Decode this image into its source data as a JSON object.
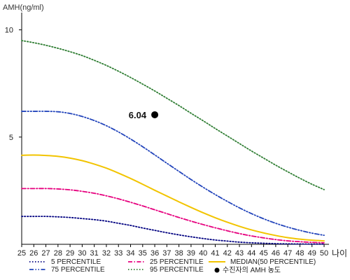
{
  "chart_data": {
    "type": "line",
    "ylabel": "AMH(ng/ml)",
    "xlabel": "나이",
    "xlim": [
      25,
      50
    ],
    "ylim": [
      0,
      11
    ],
    "yticks": [
      5,
      10
    ],
    "xticks": [
      25,
      26,
      27,
      28,
      29,
      30,
      31,
      32,
      33,
      34,
      35,
      36,
      37,
      38,
      39,
      40,
      41,
      42,
      43,
      44,
      45,
      46,
      47,
      48,
      49,
      50
    ],
    "x": [
      25,
      26,
      27,
      28,
      29,
      30,
      31,
      32,
      33,
      34,
      35,
      36,
      37,
      38,
      39,
      40,
      41,
      42,
      43,
      44,
      45,
      46,
      47,
      48,
      49,
      50
    ],
    "series": [
      {
        "name": "5 PERCENTILE",
        "color": "#000080",
        "dash": "dots",
        "values": [
          1.3,
          1.3,
          1.3,
          1.28,
          1.25,
          1.2,
          1.15,
          1.08,
          0.98,
          0.88,
          0.76,
          0.65,
          0.54,
          0.44,
          0.35,
          0.27,
          0.2,
          0.15,
          0.1,
          0.07,
          0.05,
          0.03,
          0.02,
          0.015,
          0.01,
          0.01
        ]
      },
      {
        "name": "25 PERCENTILE",
        "color": "#e6007e",
        "dash": "dashdot",
        "values": [
          2.6,
          2.6,
          2.6,
          2.58,
          2.54,
          2.47,
          2.38,
          2.26,
          2.12,
          1.96,
          1.79,
          1.61,
          1.43,
          1.25,
          1.08,
          0.92,
          0.77,
          0.63,
          0.5,
          0.39,
          0.3,
          0.22,
          0.16,
          0.12,
          0.09,
          0.07
        ]
      },
      {
        "name": "MEDIAN(50 PERCENTILE)",
        "color": "#f2c400",
        "dash": "solid",
        "values": [
          4.15,
          4.16,
          4.14,
          4.1,
          4.02,
          3.9,
          3.74,
          3.55,
          3.32,
          3.07,
          2.8,
          2.52,
          2.25,
          1.98,
          1.72,
          1.47,
          1.24,
          1.03,
          0.84,
          0.67,
          0.53,
          0.41,
          0.31,
          0.24,
          0.19,
          0.16
        ]
      },
      {
        "name": "75 PERCENTILE",
        "color": "#2244bb",
        "dash": "dashdotdot",
        "values": [
          6.2,
          6.2,
          6.2,
          6.18,
          6.1,
          5.96,
          5.77,
          5.53,
          5.24,
          4.91,
          4.55,
          4.17,
          3.78,
          3.4,
          3.02,
          2.66,
          2.32,
          2.0,
          1.7,
          1.43,
          1.19,
          0.98,
          0.8,
          0.65,
          0.52,
          0.42
        ]
      },
      {
        "name": "95 PERCENTILE",
        "color": "#2e7d32",
        "dash": "dots",
        "values": [
          9.5,
          9.4,
          9.28,
          9.14,
          8.98,
          8.8,
          8.58,
          8.34,
          8.07,
          7.78,
          7.47,
          7.15,
          6.81,
          6.47,
          6.11,
          5.76,
          5.4,
          5.05,
          4.7,
          4.35,
          4.02,
          3.69,
          3.38,
          3.08,
          2.8,
          2.55
        ]
      }
    ],
    "point": {
      "name": "수진자의 AMH 농도",
      "x": 36,
      "y": 6.04,
      "label": "6.04",
      "color": "#000000"
    },
    "legend_position": "bottom"
  }
}
